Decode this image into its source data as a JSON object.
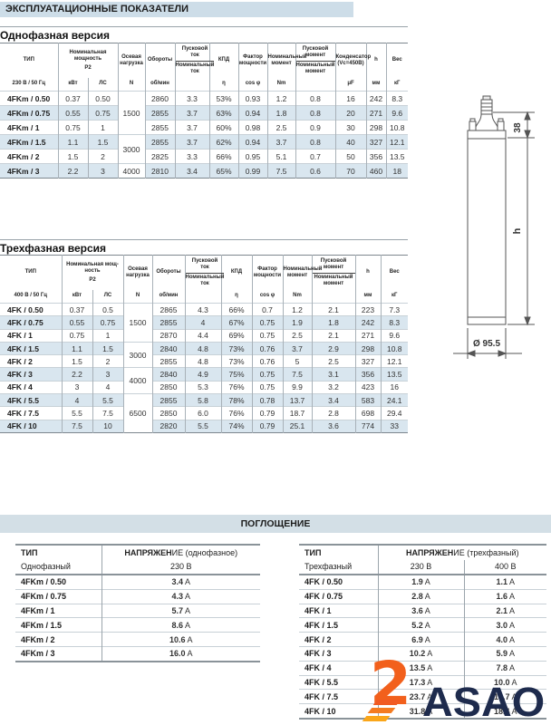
{
  "page": {
    "title": "ЭКСПЛУАТАЦИОННЫЕ ПОКАЗАТЕЛИ",
    "absorption_title": "ПОГЛОЩЕНИЕ"
  },
  "colors": {
    "bar_bg": "#cddde8",
    "row_stripe": "#d9e6ef",
    "logo_orange": "#f2601c",
    "logo_navy": "#1e2b4d"
  },
  "t1": {
    "section_title": "Однофазная версия",
    "h": {
      "tip": "ТИП",
      "volt": "230 В / 50 Гц",
      "nominal_power": "Номинальная мощность",
      "p2": "P2",
      "kw": "кВт",
      "ls": "ЛС",
      "axial": "Осевая нагрузка",
      "n": "N",
      "rpm": "Обороты",
      "rpm_u": "об/мин",
      "start_current": "Пусковой ток",
      "nom_current": "Номинальный ток",
      "kpd": "КПД",
      "eta": "η",
      "pf": "Фактор мощности",
      "cos": "cos φ",
      "nom_torque": "Номинальный момент",
      "nm": "Nm",
      "start_torque": "Пусковой момент",
      "nom_torque2": "Номинальный момент",
      "cap1": "Конденсатор",
      "cap2": "(Vc=450B)",
      "uf": "μF",
      "h": "h",
      "mm": "мм",
      "weight": "Вес",
      "kg": "кГ"
    },
    "rows": [
      [
        "4FKm / 0.50",
        "0.37",
        "0.50",
        {
          "t": "1500",
          "rs": 3
        },
        "2860",
        "3.3",
        "53%",
        "0.93",
        "1.2",
        "0.8",
        "16",
        "242",
        "8.3"
      ],
      [
        "4FKm / 0.75",
        "0.55",
        "0.75",
        null,
        "2855",
        "3.7",
        "63%",
        "0.94",
        "1.8",
        "0.8",
        "20",
        "271",
        "9.6"
      ],
      [
        "4FKm / 1",
        "0.75",
        "1",
        null,
        "2855",
        "3.7",
        "60%",
        "0.98",
        "2.5",
        "0.9",
        "30",
        "298",
        "10.8"
      ],
      [
        "4FKm / 1.5",
        "1.1",
        "1.5",
        {
          "t": "3000",
          "rs": 2
        },
        "2855",
        "3.7",
        "62%",
        "0.94",
        "3.7",
        "0.8",
        "40",
        "327",
        "12.1"
      ],
      [
        "4FKm / 2",
        "1.5",
        "2",
        null,
        "2825",
        "3.3",
        "66%",
        "0.95",
        "5.1",
        "0.7",
        "50",
        "356",
        "13.5"
      ],
      [
        "4FKm / 3",
        "2.2",
        "3",
        {
          "t": "4000",
          "rs": 1
        },
        "2810",
        "3.4",
        "65%",
        "0.99",
        "7.5",
        "0.6",
        "70",
        "460",
        "18"
      ]
    ]
  },
  "t2": {
    "section_title": "Трехфазная версия",
    "h": {
      "tip": "ТИП",
      "volt": "400 В / 50 Гц",
      "nominal_power": "Номинальная мощ-ность",
      "p2": "P2",
      "kw": "кВт",
      "ls": "ЛС",
      "axial": "Осевая нагрузка",
      "n": "N",
      "rpm": "Обороты",
      "rpm_u": "об/мин",
      "start_current": "Пусковой ток",
      "nom_current": "Номинальный ток",
      "kpd": "КПД",
      "eta": "η",
      "pf": "Фактор мощности",
      "cos": "cos φ",
      "nom_torque": "Номинальный момент",
      "nm": "Nm",
      "start_torque": "Пусковой момент",
      "nom_torque2": "Номинальный момент",
      "h": "h",
      "mm": "мм",
      "weight": "Вес",
      "kg": "кГ"
    },
    "rows": [
      [
        "4FK / 0.50",
        "0.37",
        "0.5",
        {
          "t": "1500",
          "rs": 3
        },
        "2865",
        "4.3",
        "66%",
        "0.7",
        "1.2",
        "2.1",
        "223",
        "7.3"
      ],
      [
        "4FK / 0.75",
        "0.55",
        "0.75",
        null,
        "2855",
        "4",
        "67%",
        "0.75",
        "1.9",
        "1.8",
        "242",
        "8.3"
      ],
      [
        "4FK / 1",
        "0.75",
        "1",
        null,
        "2870",
        "4.4",
        "69%",
        "0.75",
        "2.5",
        "2.1",
        "271",
        "9.6"
      ],
      [
        "4FK / 1.5",
        "1.1",
        "1.5",
        {
          "t": "3000",
          "rs": 2
        },
        "2840",
        "4.8",
        "73%",
        "0.76",
        "3.7",
        "2.9",
        "298",
        "10.8"
      ],
      [
        "4FK / 2",
        "1.5",
        "2",
        null,
        "2855",
        "4.8",
        "73%",
        "0.76",
        "5",
        "2.5",
        "327",
        "12.1"
      ],
      [
        "4FK / 3",
        "2.2",
        "3",
        {
          "t": "4000",
          "rs": 2
        },
        "2840",
        "4.9",
        "75%",
        "0.75",
        "7.5",
        "3.1",
        "356",
        "13.5"
      ],
      [
        "4FK / 4",
        "3",
        "4",
        null,
        "2850",
        "5.3",
        "76%",
        "0.75",
        "9.9",
        "3.2",
        "423",
        "16"
      ],
      [
        "4FK / 5.5",
        "4",
        "5.5",
        {
          "t": "6500",
          "rs": 3
        },
        "2855",
        "5.8",
        "78%",
        "0.78",
        "13.7",
        "3.4",
        "583",
        "24.1"
      ],
      [
        "4FK / 7.5",
        "5.5",
        "7.5",
        null,
        "2850",
        "6.0",
        "76%",
        "0.79",
        "18.7",
        "2.8",
        "698",
        "29.4"
      ],
      [
        "4FK / 10",
        "7.5",
        "10",
        null,
        "2820",
        "5.5",
        "74%",
        "0.79",
        "25.1",
        "3.6",
        "774",
        "33"
      ]
    ]
  },
  "diagram": {
    "dim_top": "38",
    "dim_height": "h",
    "dim_diameter": "Ø 95.5"
  },
  "a1": {
    "tip": "ТИП",
    "phase": "Однофазный",
    "volt_header": "НАПРЯЖЕН",
    "volt_header2": "ИЕ (однофазное)",
    "volt_val": "230 В",
    "rows": [
      [
        "4FKm / 0.50",
        "3.4 A"
      ],
      [
        "4FKm / 0.75",
        "4.3 A"
      ],
      [
        "4FKm / 1",
        "5.7 A"
      ],
      [
        "4FKm / 1.5",
        "8.6 A"
      ],
      [
        "4FKm / 2",
        "10.6 A"
      ],
      [
        "4FKm / 3",
        "16.0 A"
      ]
    ]
  },
  "a2": {
    "tip": "ТИП",
    "phase": "Трехфазный",
    "volt_header": "НАПРЯЖЕН",
    "volt_header2": "ИЕ (трехфазный)",
    "v230": "230 В",
    "v400": "400 В",
    "rows": [
      [
        "4FK / 0.50",
        "1.9 A",
        "1.1 A"
      ],
      [
        "4FK / 0.75",
        "2.8 A",
        "1.6 A"
      ],
      [
        "4FK / 1",
        "3.6 A",
        "2.1 A"
      ],
      [
        "4FK / 1.5",
        "5.2 A",
        "3.0 A"
      ],
      [
        "4FK / 2",
        "6.9 A",
        "4.0 A"
      ],
      [
        "4FK / 3",
        "10.2 A",
        "5.9 A"
      ],
      [
        "4FK / 4",
        "13.5 A",
        "7.8 A"
      ],
      [
        "4FK / 5.5",
        "17.3 A",
        "10.0 A"
      ],
      [
        "4FK / 7.5",
        "23.7 A",
        "13.7 A"
      ],
      [
        "4FK / 10",
        "31.8 A",
        "18.4 A"
      ]
    ]
  },
  "logo": {
    "text": "ASAO",
    "mark": "2"
  }
}
